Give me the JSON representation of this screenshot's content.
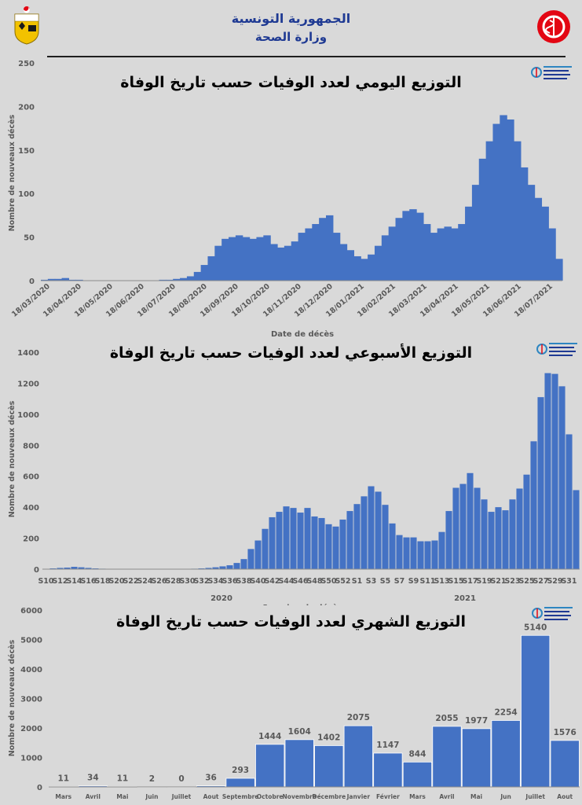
{
  "header": {
    "republic": "الجمهورية التونسية",
    "ministry": "وزارة الصحة"
  },
  "colors": {
    "bar": "#4472c4",
    "background": "#d9d9d9",
    "header_text": "#1f3a93",
    "logo_red": "#e30613"
  },
  "icons": {
    "emblem": "tunisia-coat-of-arms-icon",
    "ministry": "ministry-of-health-logo-icon",
    "observatory": "observatory-logo-icon"
  },
  "charts": [
    {
      "title": "التوزيع اليومي لعدد الوفيات حسب تاريخ الوفاة",
      "ylabel": "Nombre de nouveaux décès",
      "xlabel": "Date de décès"
    },
    {
      "title": "التوزيع الأسبوعي لعدد الوفيات حسب تاريخ الوفاة",
      "ylabel": "Nombre de nouveaux décès",
      "xlabel": "Semaine de décès",
      "year_labels": [
        "2020",
        "2021"
      ]
    },
    {
      "title": "التوزيع الشهري لعدد الوفيات حسب تاريخ الوفاة",
      "ylabel": "Nombre de nouveaux décès",
      "xlabel": ""
    }
  ],
  "chart_data": [
    {
      "type": "bar",
      "title": "التوزيع اليومي لعدد الوفيات حسب تاريخ الوفاة",
      "xlabel": "Date de décès",
      "ylabel": "Nombre de nouveaux décès",
      "ylim": [
        0,
        250
      ],
      "yticks": [
        0,
        50,
        100,
        150,
        200,
        250
      ],
      "xticks": [
        "18/03/2020",
        "18/04/2020",
        "18/05/2020",
        "18/06/2020",
        "18/07/2020",
        "18/08/2020",
        "18/09/2020",
        "18/10/2020",
        "18/11/2020",
        "18/12/2020",
        "18/01/2021",
        "18/02/2021",
        "18/03/2021",
        "18/04/2021",
        "18/05/2021",
        "18/06/2021",
        "18/07/2021"
      ],
      "profile_note": "approximate daily values, one per 7 days, from 2020-03-18 to 2021-08-13",
      "values": [
        1,
        2,
        2,
        3,
        1,
        1,
        0,
        0,
        0,
        0,
        0,
        0,
        0,
        0,
        0,
        0,
        0,
        1,
        1,
        2,
        3,
        5,
        10,
        18,
        28,
        40,
        48,
        50,
        52,
        50,
        48,
        50,
        52,
        42,
        38,
        40,
        45,
        55,
        60,
        65,
        72,
        75,
        55,
        42,
        35,
        28,
        25,
        30,
        40,
        52,
        62,
        72,
        80,
        82,
        78,
        65,
        55,
        60,
        62,
        60,
        65,
        85,
        110,
        140,
        160,
        180,
        190,
        185,
        160,
        130,
        110,
        95,
        85,
        60,
        25
      ],
      "grid": false,
      "legend": "none"
    },
    {
      "type": "bar",
      "title": "التوزيع الأسبوعي لعدد الوفيات حسب تاريخ الوفاة",
      "xlabel": "Semaine de décès",
      "ylabel": "Nombre de nouveaux décès",
      "ylim": [
        0,
        1400
      ],
      "yticks": [
        0,
        200,
        400,
        600,
        800,
        1000,
        1200,
        1400
      ],
      "categories": [
        "S10",
        "S11",
        "S12",
        "S13",
        "S14",
        "S15",
        "S16",
        "S17",
        "S18",
        "S19",
        "S20",
        "S21",
        "S22",
        "S23",
        "S24",
        "S25",
        "S26",
        "S27",
        "S28",
        "S29",
        "S30",
        "S31",
        "S32",
        "S33",
        "S34",
        "S35",
        "S36",
        "S37",
        "S38",
        "S39",
        "S40",
        "S41",
        "S42",
        "S43",
        "S44",
        "S45",
        "S46",
        "S47",
        "S48",
        "S49",
        "S50",
        "S51",
        "S52",
        "S53",
        "S1",
        "S2",
        "S3",
        "S4",
        "S5",
        "S6",
        "S7",
        "S8",
        "S9",
        "S10",
        "S11",
        "S12",
        "S13",
        "S14",
        "S15",
        "S16",
        "S17",
        "S18",
        "S19",
        "S20",
        "S21",
        "S22",
        "S23",
        "S24",
        "S25",
        "S26",
        "S27",
        "S28",
        "S29",
        "S30",
        "S31",
        "S32"
      ],
      "tick_labels": [
        "S10",
        "S12",
        "S14",
        "S16",
        "S18",
        "S20",
        "S22",
        "S24",
        "S26",
        "S28",
        "S30",
        "S32",
        "S34",
        "S36",
        "S38",
        "S40",
        "S42",
        "S44",
        "S46",
        "S48",
        "S50",
        "S52",
        "S1",
        "S3",
        "S5",
        "S7",
        "S9",
        "S11",
        "S13",
        "S15",
        "S17",
        "S19",
        "S21",
        "S23",
        "S25",
        "S27",
        "S29",
        "S31"
      ],
      "values": [
        2,
        5,
        8,
        10,
        15,
        12,
        8,
        5,
        3,
        2,
        2,
        1,
        1,
        1,
        1,
        0,
        0,
        0,
        0,
        1,
        1,
        3,
        5,
        8,
        12,
        18,
        25,
        40,
        65,
        130,
        185,
        260,
        335,
        370,
        405,
        395,
        365,
        395,
        340,
        330,
        290,
        275,
        320,
        375,
        420,
        470,
        535,
        500,
        415,
        295,
        220,
        205,
        205,
        180,
        180,
        185,
        240,
        375,
        525,
        550,
        620,
        525,
        450,
        370,
        400,
        380,
        450,
        520,
        610,
        825,
        1110,
        1265,
        1260,
        1180,
        870,
        510
      ],
      "year_labels": [
        "2020",
        "2021"
      ],
      "grid": false,
      "legend": "none"
    },
    {
      "type": "bar",
      "title": "التوزيع الشهري لعدد الوفيات حسب تاريخ الوفاة",
      "ylabel": "Nombre de nouveaux décès",
      "ylim": [
        0,
        6000
      ],
      "yticks": [
        0,
        1000,
        2000,
        3000,
        4000,
        5000,
        6000
      ],
      "categories": [
        "Mars",
        "Avril",
        "Mai",
        "Juin",
        "Juillet",
        "Aout",
        "Septembre",
        "Octobre",
        "Novembre",
        "Décembre",
        "Janvier",
        "Février",
        "Mars",
        "Avril",
        "Mai",
        "Jun",
        "Juillet",
        "Aout"
      ],
      "values": [
        11,
        34,
        11,
        2,
        0,
        36,
        293,
        1444,
        1604,
        1402,
        2075,
        1147,
        844,
        2055,
        1977,
        2254,
        5140,
        1576
      ],
      "data_labels": true,
      "grid": false,
      "legend": "none"
    }
  ]
}
